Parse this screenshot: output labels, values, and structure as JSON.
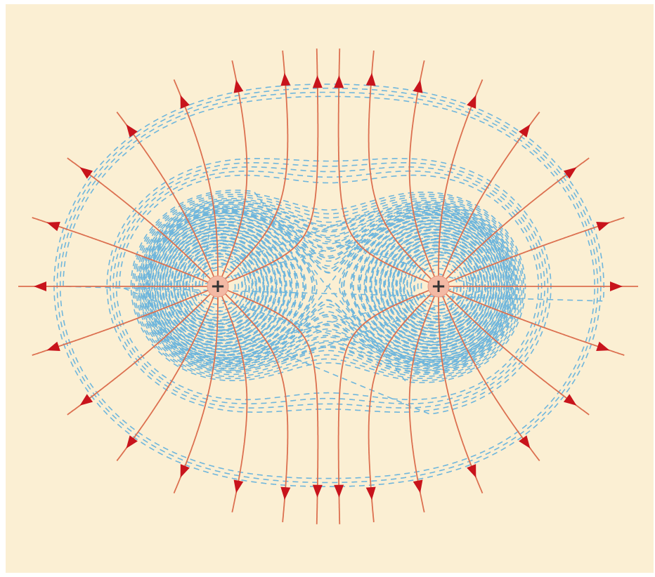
{
  "charges": [
    {
      "label": "+"
    },
    {
      "label": "+"
    }
  ]
}
